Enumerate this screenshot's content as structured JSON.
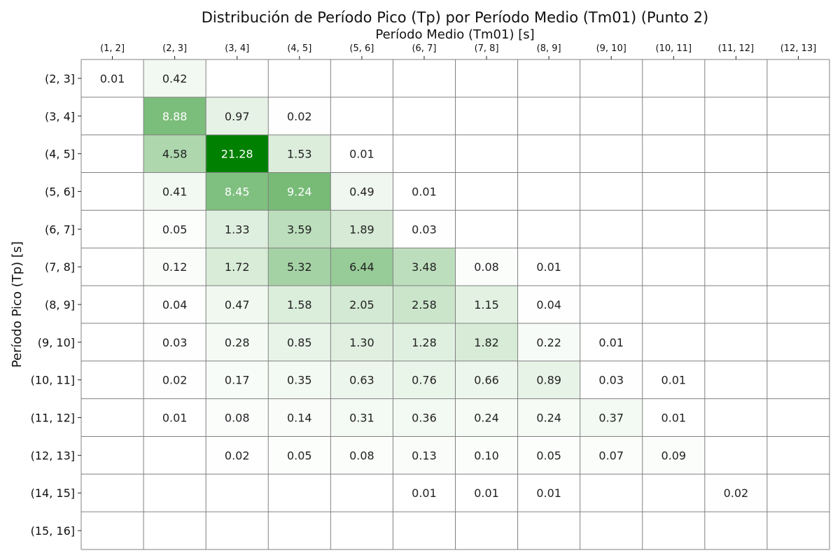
{
  "chart_data": {
    "type": "heatmap",
    "title": "Distribución de Período Pico (Tp) por Período Medio (Tm01) (Punto 2)",
    "xlabel": "Período Medio (Tm01) [s]",
    "ylabel": "Período Pico (Tp) [s]",
    "x_categories": [
      "(1, 2]",
      "(2, 3]",
      "(3, 4]",
      "(4, 5]",
      "(5, 6]",
      "(6, 7]",
      "(7, 8]",
      "(8, 9]",
      "(9, 10]",
      "(10, 11]",
      "(11, 12]",
      "(12, 13]"
    ],
    "y_categories": [
      "(2, 3]",
      "(3, 4]",
      "(4, 5]",
      "(5, 6]",
      "(6, 7]",
      "(7, 8]",
      "(8, 9]",
      "(9, 10]",
      "(10, 11]",
      "(11, 12]",
      "(12, 13]",
      "(14, 15]",
      "(15, 16]"
    ],
    "values": [
      [
        0.01,
        0.42,
        null,
        null,
        null,
        null,
        null,
        null,
        null,
        null,
        null,
        null
      ],
      [
        null,
        8.88,
        0.97,
        0.02,
        null,
        null,
        null,
        null,
        null,
        null,
        null,
        null
      ],
      [
        null,
        4.58,
        21.28,
        1.53,
        0.01,
        null,
        null,
        null,
        null,
        null,
        null,
        null
      ],
      [
        null,
        0.41,
        8.45,
        9.24,
        0.49,
        0.01,
        null,
        null,
        null,
        null,
        null,
        null
      ],
      [
        null,
        0.05,
        1.33,
        3.59,
        1.89,
        0.03,
        null,
        null,
        null,
        null,
        null,
        null
      ],
      [
        null,
        0.12,
        1.72,
        5.32,
        6.44,
        3.48,
        0.08,
        0.01,
        null,
        null,
        null,
        null
      ],
      [
        null,
        0.04,
        0.47,
        1.58,
        2.05,
        2.58,
        1.15,
        0.04,
        null,
        null,
        null,
        null
      ],
      [
        null,
        0.03,
        0.28,
        0.85,
        1.3,
        1.28,
        1.82,
        0.22,
        0.01,
        null,
        null,
        null
      ],
      [
        null,
        0.02,
        0.17,
        0.35,
        0.63,
        0.76,
        0.66,
        0.89,
        0.03,
        0.01,
        null,
        null
      ],
      [
        null,
        0.01,
        0.08,
        0.14,
        0.31,
        0.36,
        0.24,
        0.24,
        0.37,
        0.01,
        null,
        null
      ],
      [
        null,
        null,
        0.02,
        0.05,
        0.08,
        0.13,
        0.1,
        0.05,
        0.07,
        0.09,
        null,
        null
      ],
      [
        null,
        null,
        null,
        null,
        null,
        0.01,
        0.01,
        0.01,
        null,
        null,
        0.02,
        null
      ],
      [
        null,
        null,
        null,
        null,
        null,
        null,
        null,
        null,
        null,
        null,
        null,
        null
      ]
    ],
    "value_format": "two-decimals",
    "colormap": "Greens",
    "color_low": "#ffffff",
    "color_high": "#008000",
    "text_dark": "#222222",
    "text_light": "#ffffff",
    "grid_color": "#808080",
    "x_tick_position": "top",
    "legend": "none"
  }
}
